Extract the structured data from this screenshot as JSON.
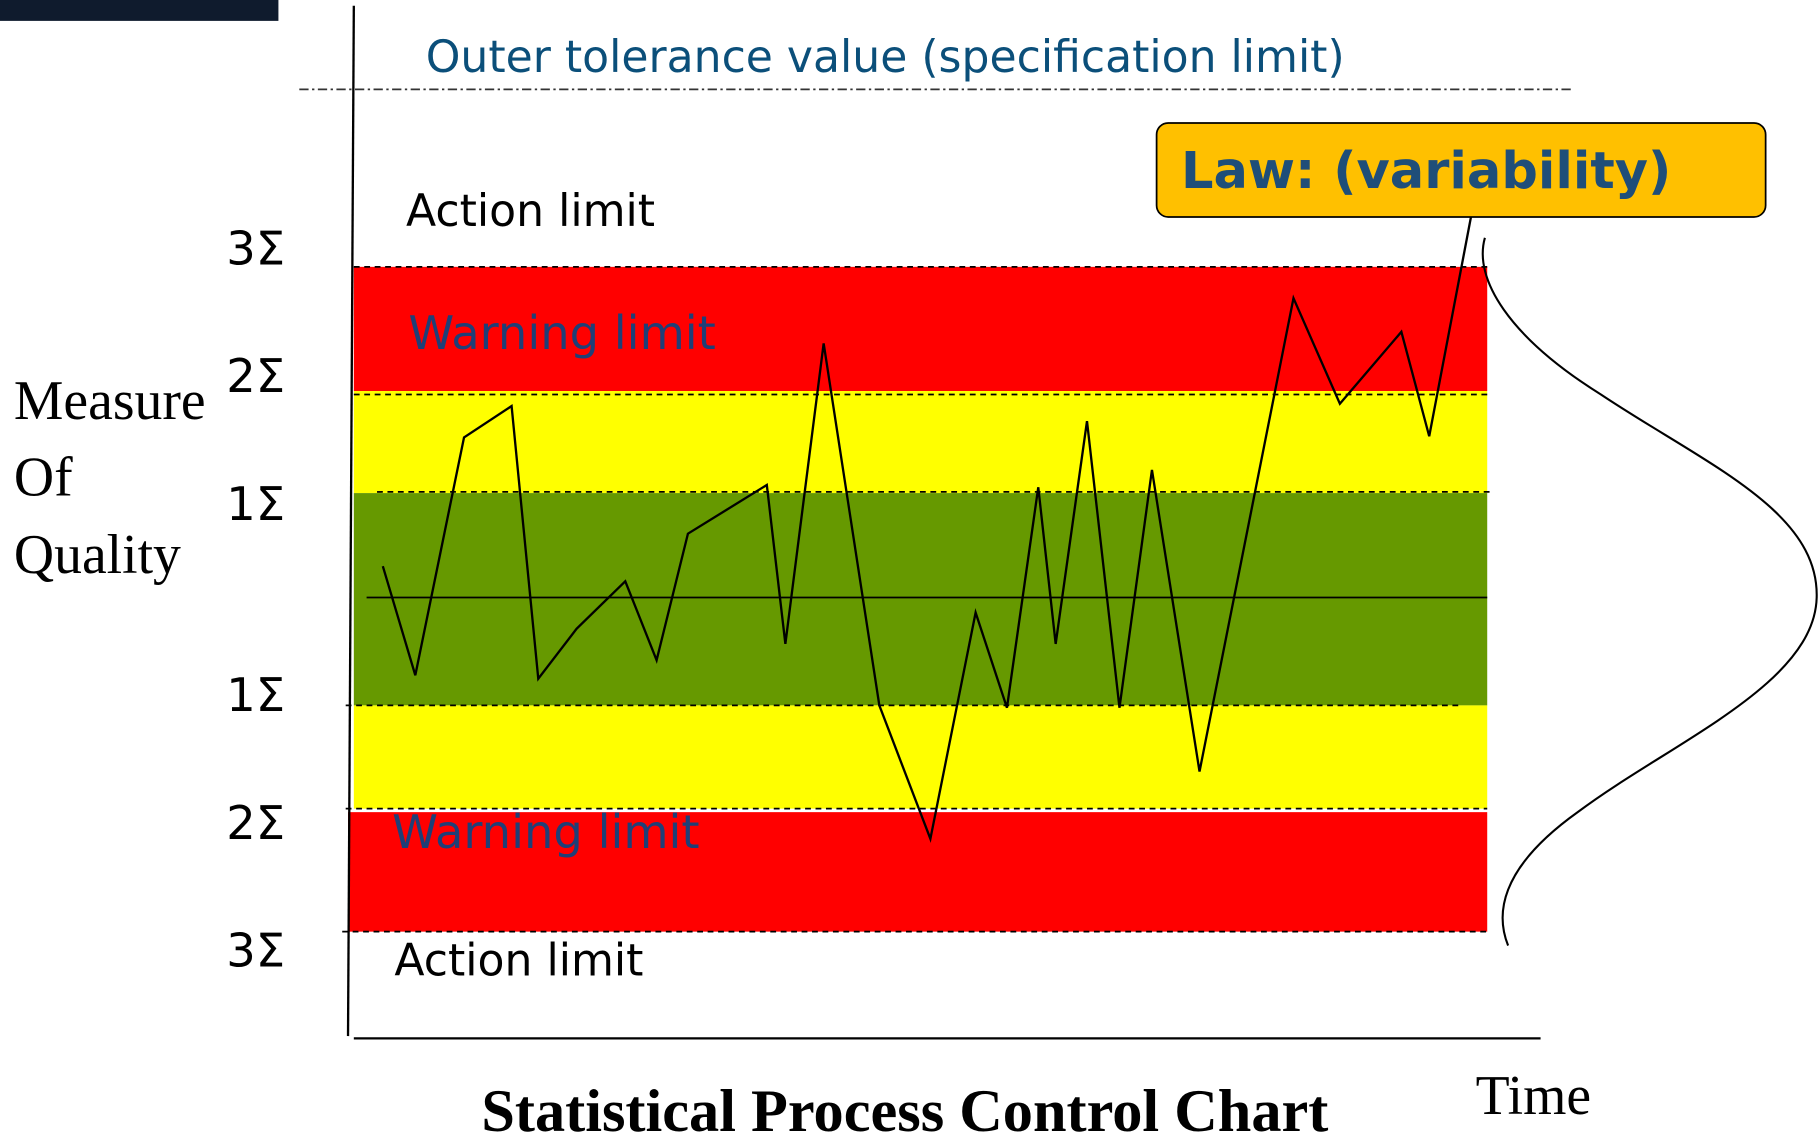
{
  "header": {
    "spec_limit": "Outer tolerance value (specification limit)"
  },
  "callout": {
    "label": "Law: (variability)"
  },
  "zones": {
    "action_upper": "Action limit",
    "warning_upper": "Warning limit",
    "warning_lower": "Warning limit",
    "action_lower": "Action limit"
  },
  "sigma_labels": [
    "3Σ",
    "2Σ",
    "1Σ",
    "1Σ",
    "2Σ",
    "3Σ"
  ],
  "y_label": [
    "Measure",
    "Of",
    "Quality"
  ],
  "x_label": "Time",
  "title": "Statistical Process Control Chart"
}
